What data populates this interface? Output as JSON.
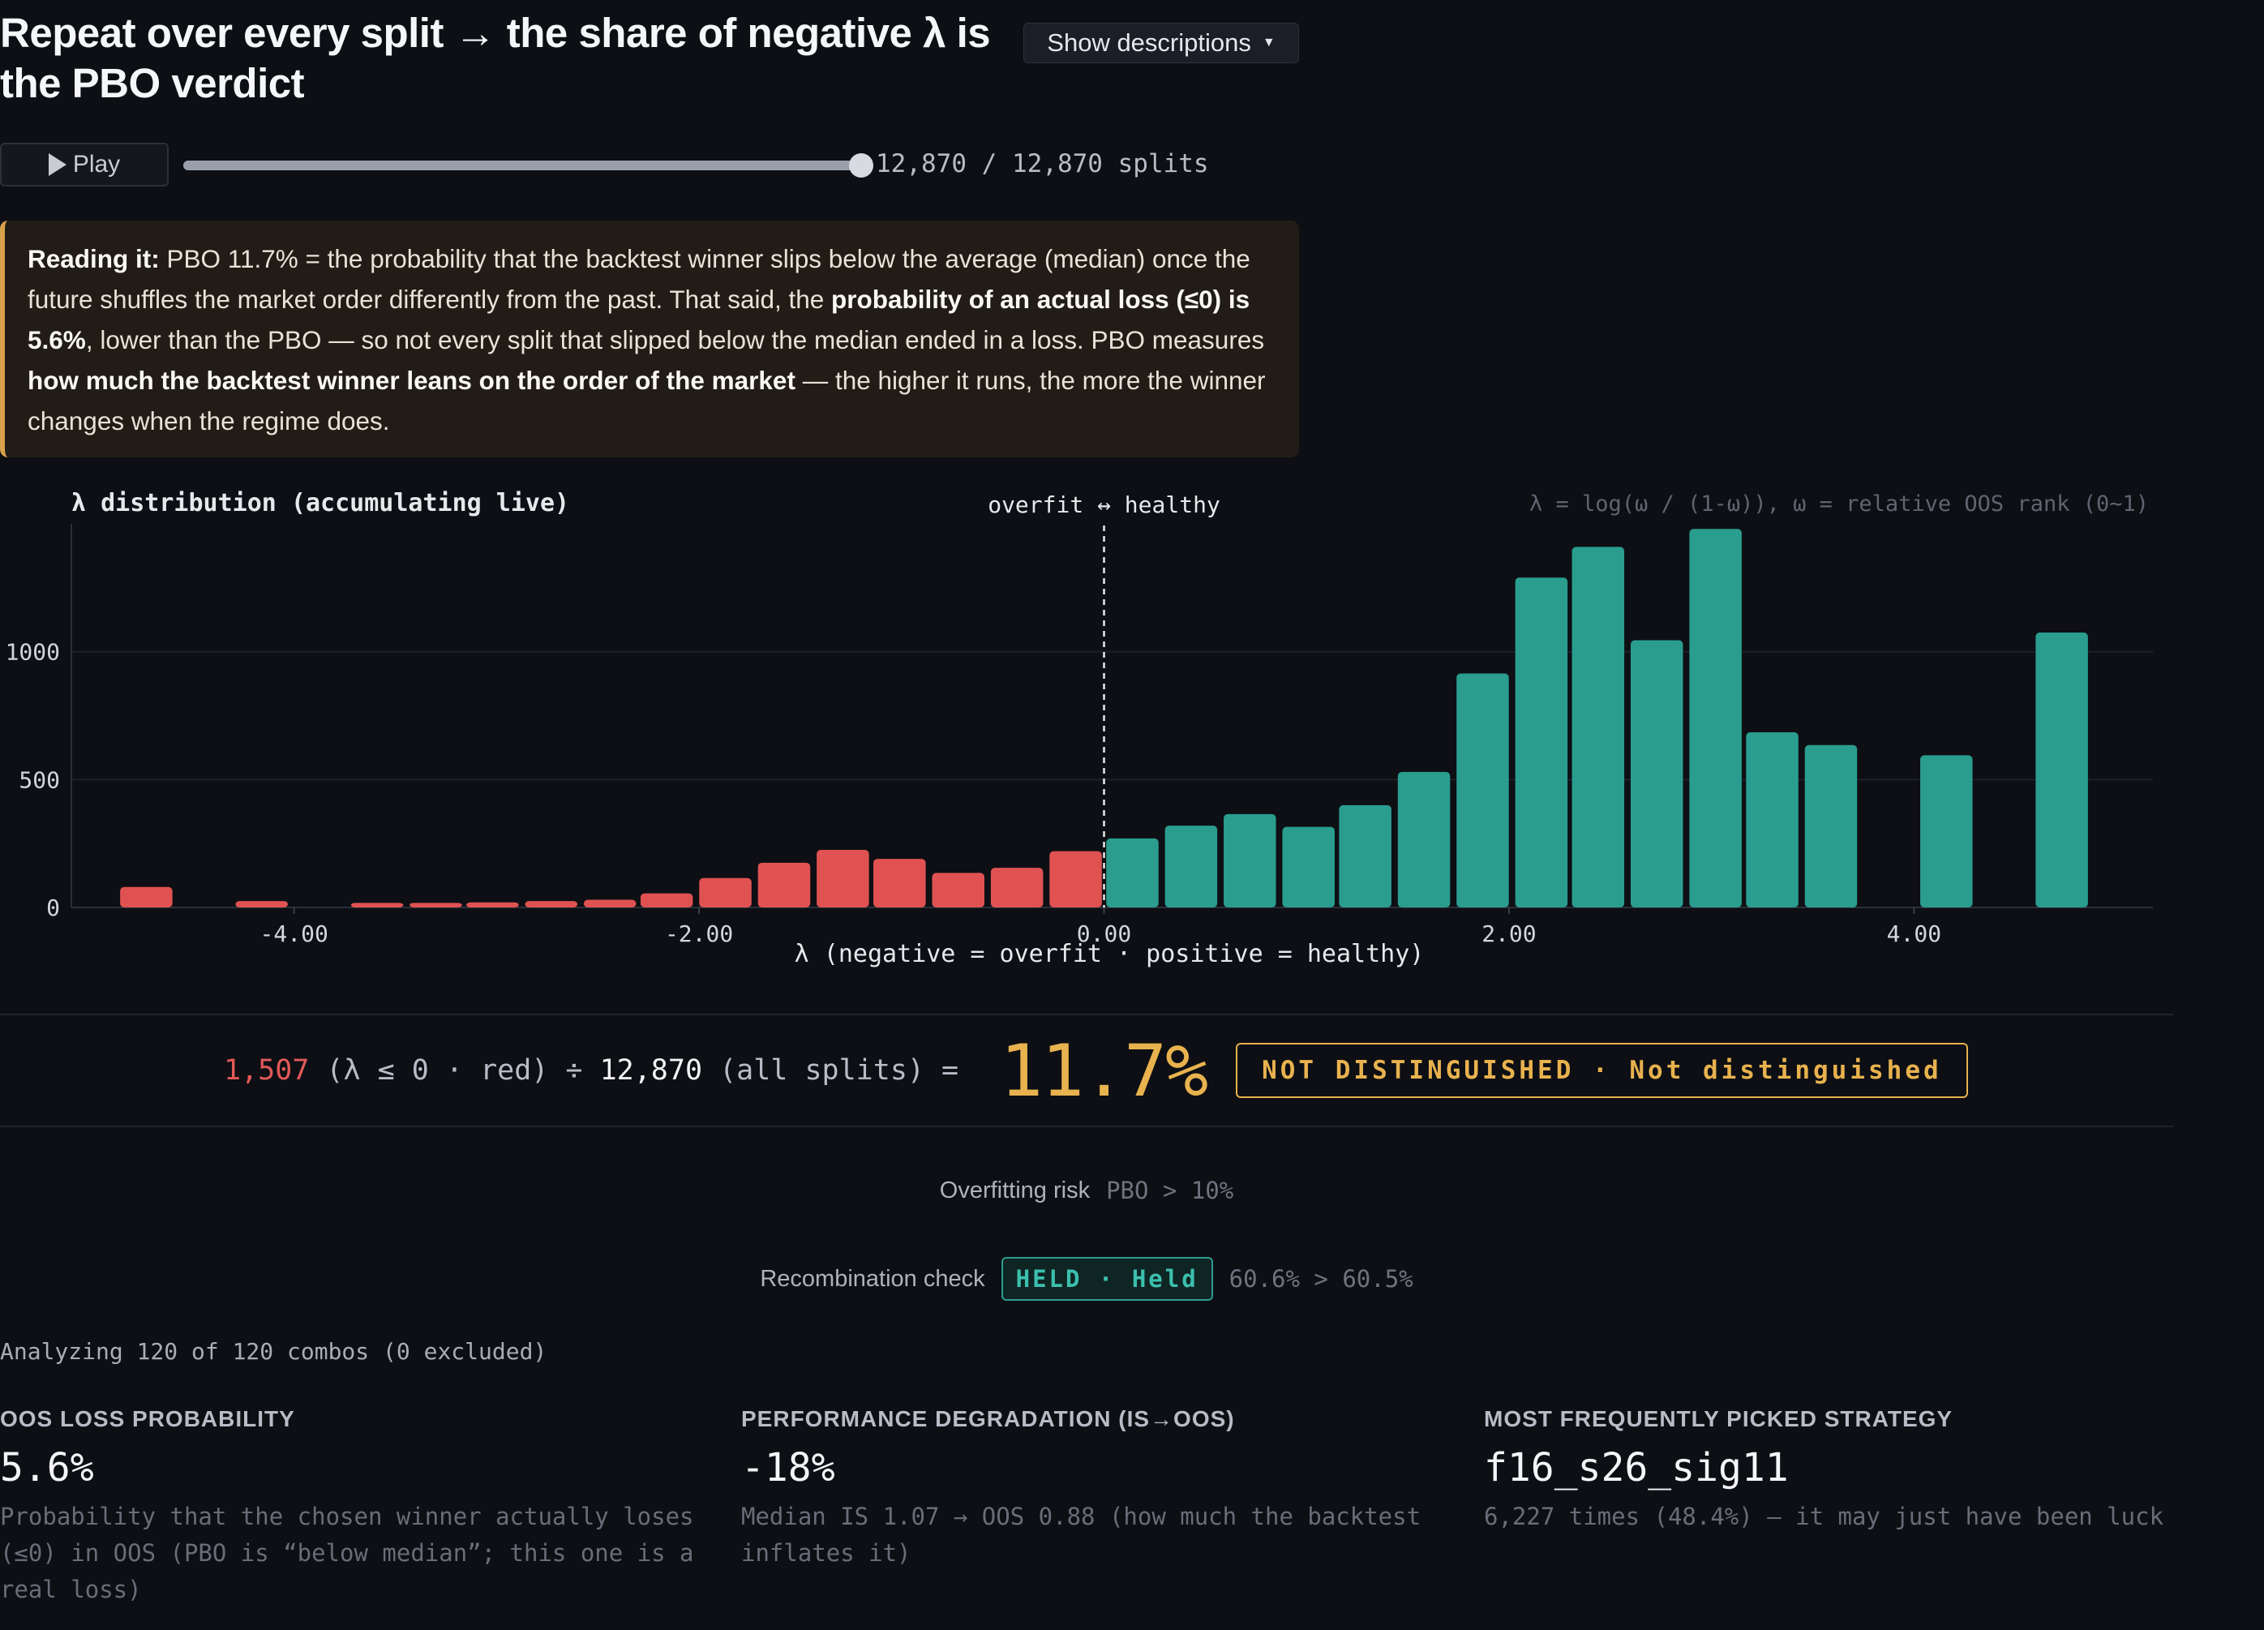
{
  "header": {
    "title": "Repeat over every split → the share of negative λ is the PBO verdict",
    "desc_toggle_label": "Show descriptions"
  },
  "playback": {
    "play_label": "Play",
    "progress": 1.0,
    "counter": "12,870 / 12,870 splits"
  },
  "reading": {
    "lead": "Reading it:",
    "t1": " PBO 11.7% = the probability that the backtest winner slips below the average (median) once the future shuffles the market order differently from the past. That said, the ",
    "b1": "probability of an actual loss (≤0) is 5.6%",
    "t2": ", lower than the PBO — so not every split that slipped below the median ended in a loss. PBO measures ",
    "b2": "how much the backtest winner leans on the order of the market",
    "t3": " — the higher it runs, the more the winner changes when the regime does."
  },
  "chart_data": {
    "type": "bar",
    "title": "λ distribution (accumulating live)",
    "formula_note": "λ = log(ω / (1-ω)), ω = relative OOS rank (0~1)",
    "divider_label": "overfit ↔ healthy",
    "xlabel": "λ (negative = overfit · positive = healthy)",
    "ylabel": "",
    "x_ticks": [
      "-4.00",
      "-2.00",
      "0.00",
      "2.00",
      "4.00"
    ],
    "y_ticks": [
      "0",
      "500",
      "1000"
    ],
    "xlim": [
      -5.1,
      5.18
    ],
    "ylim": [
      0,
      1500
    ],
    "bin_width": 0.287,
    "divider_x": 0.0,
    "colors": {
      "negative": "#e05252",
      "positive": "#2a9d8f"
    },
    "bins": [
      {
        "x": -4.73,
        "count": 80
      },
      {
        "x": -4.16,
        "count": 25
      },
      {
        "x": -3.59,
        "count": 18
      },
      {
        "x": -3.3,
        "count": 18
      },
      {
        "x": -3.02,
        "count": 20
      },
      {
        "x": -2.73,
        "count": 25
      },
      {
        "x": -2.44,
        "count": 30
      },
      {
        "x": -2.16,
        "count": 55
      },
      {
        "x": -1.87,
        "count": 115
      },
      {
        "x": -1.58,
        "count": 175
      },
      {
        "x": -1.29,
        "count": 225
      },
      {
        "x": -1.01,
        "count": 190
      },
      {
        "x": -0.72,
        "count": 135
      },
      {
        "x": -0.43,
        "count": 155
      },
      {
        "x": -0.14,
        "count": 220
      },
      {
        "x": 0.14,
        "count": 270
      },
      {
        "x": 0.43,
        "count": 320
      },
      {
        "x": 0.72,
        "count": 365
      },
      {
        "x": 1.01,
        "count": 315
      },
      {
        "x": 1.29,
        "count": 400
      },
      {
        "x": 1.58,
        "count": 530
      },
      {
        "x": 1.87,
        "count": 915
      },
      {
        "x": 2.16,
        "count": 1290
      },
      {
        "x": 2.44,
        "count": 1410
      },
      {
        "x": 2.73,
        "count": 1045
      },
      {
        "x": 3.02,
        "count": 1480
      },
      {
        "x": 3.3,
        "count": 685
      },
      {
        "x": 3.59,
        "count": 635
      },
      {
        "x": 4.16,
        "count": 595
      },
      {
        "x": 4.73,
        "count": 1075
      }
    ]
  },
  "formula": {
    "neg_count": "1,507",
    "neg_desc": " (λ ≤ 0 · red) ÷ ",
    "total": "12,870",
    "total_desc": " (all splits) = ",
    "pbo": "11.7%",
    "verdict": "NOT DISTINGUISHED · Not distinguished"
  },
  "risk": {
    "label": "Overfitting risk",
    "value": "PBO > 10%"
  },
  "recombination": {
    "label": "Recombination check",
    "badge": "HELD · Held",
    "value": "60.6% > 60.5%"
  },
  "analyzing": "Analyzing 120 of 120 combos (0 excluded)",
  "stats": [
    {
      "label": "OOS LOSS PROBABILITY",
      "value": "5.6%",
      "desc": "Probability that the chosen winner actually loses (≤0) in OOS (PBO is “below median”; this one is a real loss)"
    },
    {
      "label": "PERFORMANCE DEGRADATION (IS→OOS)",
      "value": "-18%",
      "desc": "Median IS 1.07 → OOS 0.88 (how much the backtest inflates it)"
    },
    {
      "label": "MOST FREQUENTLY PICKED STRATEGY",
      "value": "f16_s26_sig11",
      "desc": "6,227 times (48.4%) — it may just have been luck"
    }
  ]
}
